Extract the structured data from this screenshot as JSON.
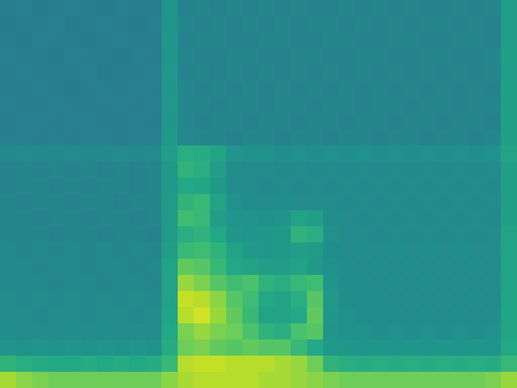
{
  "chart_data": {
    "type": "heatmap",
    "tick_labels": false,
    "grid": false,
    "xlim": [
      0,
      32
    ],
    "ylim": [
      0,
      24
    ],
    "color_range": [
      0,
      90
    ],
    "cells": [
      [
        38,
        39,
        37,
        38,
        39,
        38,
        37,
        39,
        38,
        38,
        46,
        40,
        41,
        40,
        41,
        40,
        41,
        40,
        41,
        40,
        40,
        41,
        40,
        41,
        40,
        41,
        40,
        40,
        41,
        40,
        41,
        50
      ],
      [
        37,
        38,
        38,
        39,
        37,
        38,
        39,
        38,
        37,
        39,
        46,
        41,
        40,
        41,
        40,
        41,
        40,
        41,
        40,
        41,
        41,
        40,
        41,
        40,
        41,
        40,
        41,
        41,
        40,
        41,
        40,
        50
      ],
      [
        38,
        37,
        39,
        38,
        38,
        37,
        38,
        39,
        38,
        38,
        47,
        40,
        41,
        41,
        40,
        40,
        41,
        41,
        40,
        40,
        41,
        41,
        40,
        40,
        41,
        41,
        40,
        40,
        41,
        41,
        40,
        50
      ],
      [
        39,
        38,
        38,
        37,
        39,
        38,
        38,
        37,
        39,
        38,
        46,
        41,
        40,
        40,
        41,
        41,
        40,
        40,
        41,
        41,
        40,
        40,
        41,
        41,
        40,
        40,
        41,
        41,
        40,
        40,
        41,
        51
      ],
      [
        38,
        39,
        38,
        38,
        38,
        39,
        37,
        38,
        38,
        39,
        47,
        40,
        41,
        40,
        41,
        40,
        41,
        40,
        41,
        40,
        41,
        40,
        41,
        40,
        41,
        40,
        41,
        40,
        41,
        40,
        41,
        50
      ],
      [
        38,
        38,
        39,
        38,
        37,
        38,
        39,
        38,
        39,
        38,
        47,
        41,
        40,
        41,
        40,
        41,
        40,
        41,
        40,
        41,
        40,
        41,
        40,
        41,
        40,
        41,
        40,
        41,
        40,
        41,
        40,
        51
      ],
      [
        39,
        38,
        38,
        39,
        38,
        38,
        38,
        39,
        38,
        39,
        47,
        41,
        41,
        40,
        41,
        41,
        40,
        41,
        41,
        40,
        41,
        41,
        40,
        41,
        41,
        40,
        41,
        41,
        40,
        41,
        41,
        51
      ],
      [
        38,
        39,
        39,
        38,
        39,
        39,
        38,
        38,
        39,
        38,
        47,
        41,
        40,
        41,
        41,
        40,
        41,
        41,
        40,
        41,
        41,
        40,
        41,
        41,
        40,
        41,
        41,
        40,
        41,
        41,
        40,
        51
      ],
      [
        39,
        39,
        38,
        39,
        38,
        39,
        39,
        38,
        39,
        39,
        48,
        42,
        41,
        41,
        40,
        41,
        41,
        40,
        41,
        41,
        40,
        41,
        41,
        40,
        41,
        41,
        40,
        41,
        41,
        40,
        41,
        51
      ],
      [
        42,
        43,
        42,
        42,
        43,
        42,
        42,
        43,
        42,
        43,
        50,
        56,
        55,
        52,
        46,
        45,
        45,
        44,
        45,
        44,
        45,
        44,
        45,
        44,
        45,
        44,
        45,
        44,
        45,
        44,
        45,
        52
      ],
      [
        40,
        41,
        40,
        41,
        40,
        41,
        40,
        41,
        40,
        41,
        48,
        58,
        56,
        50,
        44,
        43,
        43,
        42,
        43,
        42,
        43,
        42,
        43,
        42,
        43,
        42,
        43,
        42,
        43,
        42,
        43,
        51
      ],
      [
        40,
        41,
        41,
        40,
        41,
        40,
        41,
        41,
        40,
        41,
        48,
        54,
        53,
        48,
        44,
        43,
        42,
        43,
        42,
        43,
        42,
        43,
        42,
        43,
        42,
        43,
        42,
        43,
        42,
        43,
        42,
        51
      ],
      [
        41,
        40,
        41,
        41,
        40,
        41,
        41,
        40,
        41,
        41,
        49,
        58,
        60,
        52,
        45,
        44,
        43,
        44,
        43,
        44,
        43,
        42,
        43,
        42,
        43,
        42,
        43,
        42,
        43,
        42,
        43,
        51
      ],
      [
        41,
        41,
        40,
        41,
        41,
        40,
        41,
        41,
        40,
        41,
        49,
        62,
        60,
        50,
        46,
        46,
        45,
        46,
        52,
        50,
        44,
        43,
        42,
        43,
        42,
        43,
        42,
        43,
        42,
        43,
        42,
        51
      ],
      [
        41,
        41,
        41,
        40,
        41,
        41,
        40,
        41,
        41,
        40,
        49,
        56,
        58,
        54,
        47,
        46,
        47,
        48,
        58,
        56,
        45,
        43,
        43,
        42,
        43,
        42,
        43,
        42,
        43,
        42,
        43,
        52
      ],
      [
        42,
        41,
        42,
        41,
        42,
        41,
        42,
        41,
        42,
        41,
        50,
        60,
        62,
        58,
        52,
        48,
        47,
        48,
        50,
        49,
        44,
        43,
        44,
        43,
        44,
        43,
        44,
        43,
        44,
        43,
        44,
        52
      ],
      [
        42,
        42,
        41,
        42,
        42,
        41,
        42,
        42,
        41,
        42,
        52,
        68,
        66,
        60,
        54,
        52,
        50,
        50,
        52,
        48,
        45,
        44,
        43,
        44,
        43,
        44,
        43,
        44,
        43,
        44,
        43,
        52
      ],
      [
        42,
        42,
        42,
        41,
        42,
        42,
        41,
        42,
        42,
        41,
        52,
        76,
        72,
        66,
        62,
        64,
        58,
        56,
        60,
        62,
        46,
        44,
        44,
        43,
        44,
        43,
        44,
        43,
        44,
        43,
        44,
        52
      ],
      [
        43,
        42,
        43,
        42,
        43,
        42,
        43,
        42,
        43,
        42,
        52,
        82,
        80,
        74,
        66,
        62,
        54,
        52,
        56,
        66,
        48,
        44,
        44,
        44,
        43,
        44,
        43,
        44,
        43,
        44,
        43,
        53
      ],
      [
        43,
        43,
        42,
        43,
        43,
        42,
        43,
        43,
        42,
        43,
        53,
        80,
        84,
        76,
        68,
        60,
        52,
        52,
        54,
        68,
        47,
        45,
        44,
        44,
        44,
        43,
        44,
        43,
        44,
        43,
        44,
        53
      ],
      [
        44,
        43,
        44,
        43,
        44,
        43,
        44,
        43,
        44,
        43,
        54,
        72,
        76,
        72,
        70,
        64,
        58,
        56,
        64,
        66,
        46,
        45,
        45,
        44,
        45,
        44,
        45,
        44,
        45,
        44,
        45,
        53
      ],
      [
        46,
        45,
        46,
        45,
        46,
        45,
        46,
        45,
        46,
        45,
        55,
        70,
        72,
        68,
        66,
        68,
        66,
        66,
        60,
        54,
        48,
        47,
        46,
        47,
        46,
        47,
        46,
        47,
        46,
        47,
        46,
        54
      ],
      [
        58,
        56,
        55,
        54,
        54,
        55,
        54,
        55,
        54,
        55,
        60,
        80,
        82,
        82,
        80,
        80,
        80,
        78,
        76,
        70,
        58,
        56,
        55,
        56,
        55,
        56,
        55,
        56,
        55,
        56,
        55,
        60
      ],
      [
        78,
        74,
        72,
        70,
        70,
        70,
        70,
        70,
        70,
        70,
        74,
        78,
        80,
        80,
        80,
        80,
        78,
        78,
        76,
        74,
        72,
        70,
        70,
        70,
        70,
        70,
        70,
        70,
        70,
        70,
        72,
        76
      ]
    ]
  }
}
